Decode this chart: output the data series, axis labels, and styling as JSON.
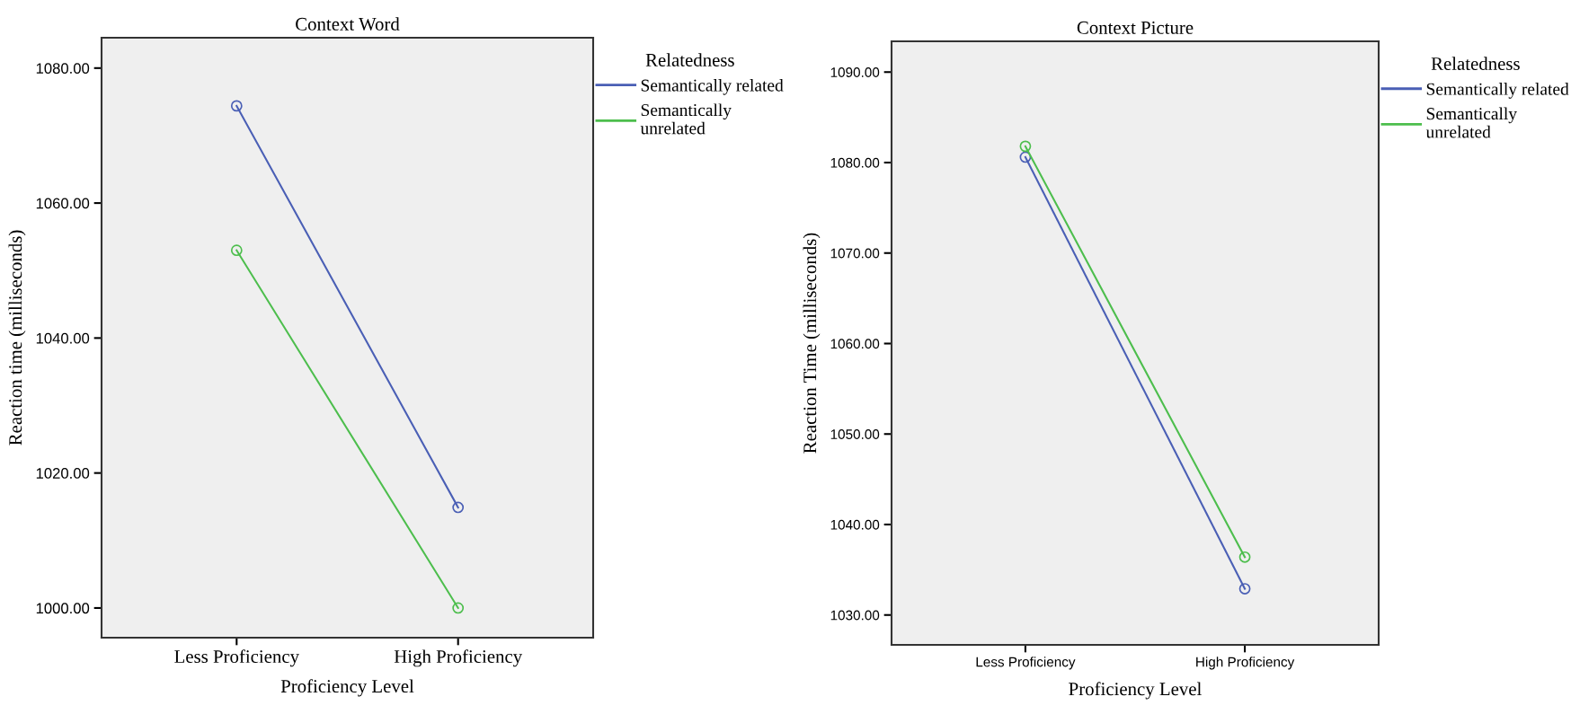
{
  "chart_data": [
    {
      "type": "line",
      "title": "Context Word",
      "xlabel": "Proficiency Level",
      "ylabel": "Reaction time (milliseconds)",
      "legend_title": "Relatedness",
      "legend": "right",
      "marker": "circle",
      "line_style": "solid",
      "grid": false,
      "categories": [
        "Less Proficiency",
        "High Proficiency"
      ],
      "ylim": [
        995.6,
        1084.5
      ],
      "yticks": [
        {
          "value": 1000,
          "label": "1000.00"
        },
        {
          "value": 1020,
          "label": "1020.00"
        },
        {
          "value": 1040,
          "label": "1040.00"
        },
        {
          "value": 1060,
          "label": "1060.00"
        },
        {
          "value": 1080,
          "label": "1080.00"
        }
      ],
      "series": [
        {
          "name": "Semantically related",
          "color": "#4a5fb5",
          "values": [
            1074.4,
            1014.9
          ]
        },
        {
          "name": "Semantically unrelated",
          "color": "#4dbe4d",
          "values": [
            1053.0,
            1000.0
          ]
        }
      ]
    },
    {
      "type": "line",
      "title": "Context Picture",
      "xlabel": "Proficiency Level",
      "ylabel": "Reaction Time (milliseconds)",
      "legend_title": "Relatedness",
      "legend": "right",
      "marker": "circle",
      "line_style": "solid",
      "grid": false,
      "categories": [
        "Less Proficiency",
        "High Proficiency"
      ],
      "ylim": [
        1026.7,
        1093.4
      ],
      "yticks": [
        {
          "value": 1030,
          "label": "1030.00"
        },
        {
          "value": 1040,
          "label": "1040.00"
        },
        {
          "value": 1050,
          "label": "1050.00"
        },
        {
          "value": 1060,
          "label": "1060.00"
        },
        {
          "value": 1070,
          "label": "1070.00"
        },
        {
          "value": 1080,
          "label": "1080.00"
        },
        {
          "value": 1090,
          "label": "1090.00"
        }
      ],
      "series": [
        {
          "name": "Semantically related",
          "color": "#4a5fb5",
          "values": [
            1080.6,
            1032.9
          ]
        },
        {
          "name": "Semantically unrelated",
          "color": "#4dbe4d",
          "values": [
            1081.8,
            1036.4
          ]
        }
      ]
    }
  ]
}
